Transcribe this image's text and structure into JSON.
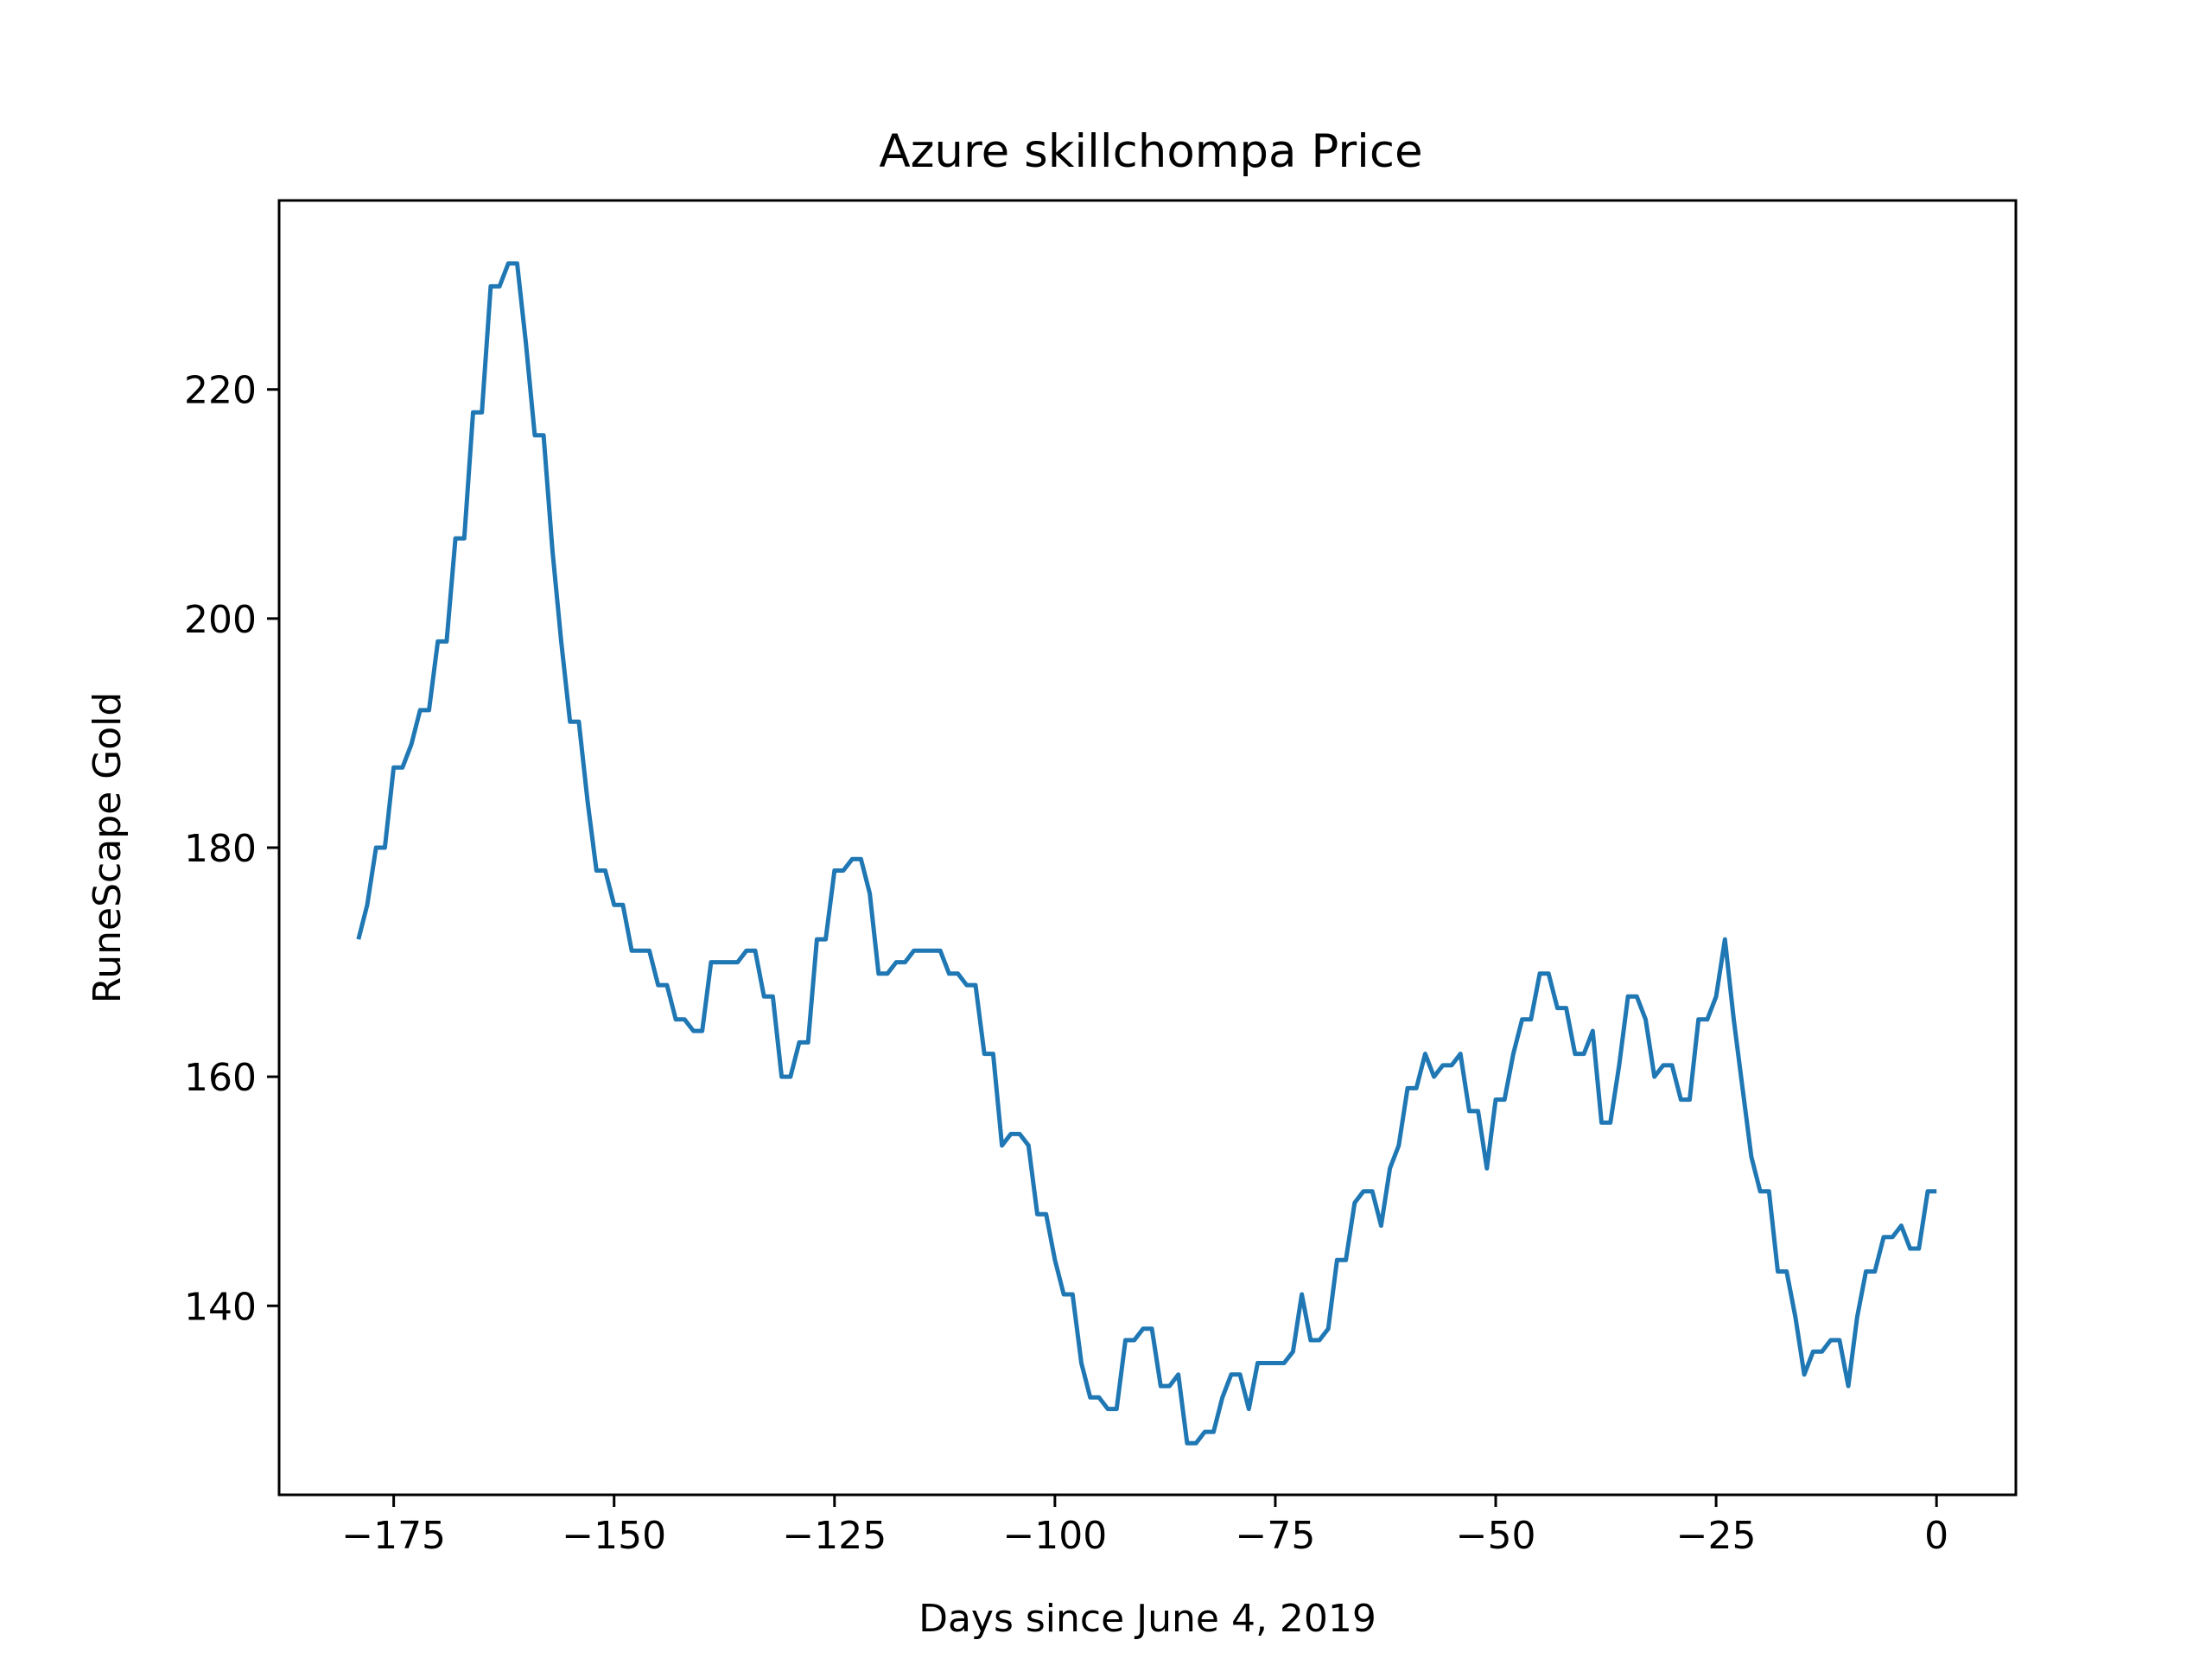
{
  "chart_data": {
    "type": "line",
    "title": "Azure skillchompa Price",
    "xlabel": "Days since June 4, 2019",
    "ylabel": "RuneScape Gold",
    "xlim": [
      -188,
      9
    ],
    "ylim": [
      123.5,
      236.5
    ],
    "xticks": [
      -175,
      -150,
      -125,
      -100,
      -75,
      -50,
      -25,
      0
    ],
    "xtick_labels": [
      "−175",
      "−150",
      "−125",
      "−100",
      "−75",
      "−50",
      "−25",
      "0"
    ],
    "yticks": [
      140,
      160,
      180,
      200,
      220
    ],
    "ytick_labels": [
      "140",
      "160",
      "180",
      "200",
      "220"
    ],
    "grid": false,
    "legend": "none",
    "series": [
      {
        "color": "#1f77b4",
        "points": [
          [
            -179,
            172
          ],
          [
            -178,
            175
          ],
          [
            -177,
            180
          ],
          [
            -176,
            180
          ],
          [
            -175,
            187
          ],
          [
            -174,
            187
          ],
          [
            -173,
            189
          ],
          [
            -172,
            192
          ],
          [
            -171,
            192
          ],
          [
            -170,
            198
          ],
          [
            -169,
            198
          ],
          [
            -168,
            207
          ],
          [
            -167,
            207
          ],
          [
            -166,
            218
          ],
          [
            -165,
            218
          ],
          [
            -164,
            229
          ],
          [
            -163,
            229
          ],
          [
            -162,
            231
          ],
          [
            -161,
            231
          ],
          [
            -160,
            224
          ],
          [
            -159,
            216
          ],
          [
            -158,
            216
          ],
          [
            -157,
            206
          ],
          [
            -156,
            198
          ],
          [
            -155,
            191
          ],
          [
            -154,
            191
          ],
          [
            -153,
            184
          ],
          [
            -152,
            178
          ],
          [
            -151,
            178
          ],
          [
            -150,
            175
          ],
          [
            -149,
            175
          ],
          [
            -148,
            171
          ],
          [
            -147,
            171
          ],
          [
            -146,
            171
          ],
          [
            -145,
            168
          ],
          [
            -144,
            168
          ],
          [
            -143,
            165
          ],
          [
            -142,
            165
          ],
          [
            -141,
            164
          ],
          [
            -140,
            164
          ],
          [
            -139,
            170
          ],
          [
            -138,
            170
          ],
          [
            -137,
            170
          ],
          [
            -136,
            170
          ],
          [
            -135,
            171
          ],
          [
            -134,
            171
          ],
          [
            -133,
            167
          ],
          [
            -132,
            167
          ],
          [
            -131,
            160
          ],
          [
            -130,
            160
          ],
          [
            -129,
            163
          ],
          [
            -128,
            163
          ],
          [
            -127,
            172
          ],
          [
            -126,
            172
          ],
          [
            -125,
            178
          ],
          [
            -124,
            178
          ],
          [
            -123,
            179
          ],
          [
            -122,
            179
          ],
          [
            -121,
            176
          ],
          [
            -120,
            169
          ],
          [
            -119,
            169
          ],
          [
            -118,
            170
          ],
          [
            -117,
            170
          ],
          [
            -116,
            171
          ],
          [
            -115,
            171
          ],
          [
            -114,
            171
          ],
          [
            -113,
            171
          ],
          [
            -112,
            169
          ],
          [
            -111,
            169
          ],
          [
            -110,
            168
          ],
          [
            -109,
            168
          ],
          [
            -108,
            162
          ],
          [
            -107,
            162
          ],
          [
            -106,
            154
          ],
          [
            -105,
            155
          ],
          [
            -104,
            155
          ],
          [
            -103,
            154
          ],
          [
            -102,
            148
          ],
          [
            -101,
            148
          ],
          [
            -100,
            144
          ],
          [
            -99,
            141
          ],
          [
            -98,
            141
          ],
          [
            -97,
            135
          ],
          [
            -96,
            132
          ],
          [
            -95,
            132
          ],
          [
            -94,
            131
          ],
          [
            -93,
            131
          ],
          [
            -92,
            137
          ],
          [
            -91,
            137
          ],
          [
            -90,
            138
          ],
          [
            -89,
            138
          ],
          [
            -88,
            133
          ],
          [
            -87,
            133
          ],
          [
            -86,
            134
          ],
          [
            -85,
            128
          ],
          [
            -84,
            128
          ],
          [
            -83,
            129
          ],
          [
            -82,
            129
          ],
          [
            -81,
            132
          ],
          [
            -80,
            134
          ],
          [
            -79,
            134
          ],
          [
            -78,
            131
          ],
          [
            -77,
            135
          ],
          [
            -76,
            135
          ],
          [
            -75,
            135
          ],
          [
            -74,
            135
          ],
          [
            -73,
            136
          ],
          [
            -72,
            141
          ],
          [
            -71,
            137
          ],
          [
            -70,
            137
          ],
          [
            -69,
            138
          ],
          [
            -68,
            144
          ],
          [
            -67,
            144
          ],
          [
            -66,
            149
          ],
          [
            -65,
            150
          ],
          [
            -64,
            150
          ],
          [
            -63,
            147
          ],
          [
            -62,
            152
          ],
          [
            -61,
            154
          ],
          [
            -60,
            159
          ],
          [
            -59,
            159
          ],
          [
            -58,
            162
          ],
          [
            -57,
            160
          ],
          [
            -56,
            161
          ],
          [
            -55,
            161
          ],
          [
            -54,
            162
          ],
          [
            -53,
            157
          ],
          [
            -52,
            157
          ],
          [
            -51,
            152
          ],
          [
            -50,
            158
          ],
          [
            -49,
            158
          ],
          [
            -48,
            162
          ],
          [
            -47,
            165
          ],
          [
            -46,
            165
          ],
          [
            -45,
            169
          ],
          [
            -44,
            169
          ],
          [
            -43,
            166
          ],
          [
            -42,
            166
          ],
          [
            -41,
            162
          ],
          [
            -40,
            162
          ],
          [
            -39,
            164
          ],
          [
            -38,
            156
          ],
          [
            -37,
            156
          ],
          [
            -36,
            161
          ],
          [
            -35,
            167
          ],
          [
            -34,
            167
          ],
          [
            -33,
            165
          ],
          [
            -32,
            160
          ],
          [
            -31,
            161
          ],
          [
            -30,
            161
          ],
          [
            -29,
            158
          ],
          [
            -28,
            158
          ],
          [
            -27,
            165
          ],
          [
            -26,
            165
          ],
          [
            -25,
            167
          ],
          [
            -24,
            172
          ],
          [
            -23,
            165
          ],
          [
            -22,
            159
          ],
          [
            -21,
            153
          ],
          [
            -20,
            150
          ],
          [
            -19,
            150
          ],
          [
            -18,
            143
          ],
          [
            -17,
            143
          ],
          [
            -16,
            139
          ],
          [
            -15,
            134
          ],
          [
            -14,
            136
          ],
          [
            -13,
            136
          ],
          [
            -12,
            137
          ],
          [
            -11,
            137
          ],
          [
            -10,
            133
          ],
          [
            -9,
            139
          ],
          [
            -8,
            143
          ],
          [
            -7,
            143
          ],
          [
            -6,
            146
          ],
          [
            -5,
            146
          ],
          [
            -4,
            147
          ],
          [
            -3,
            145
          ],
          [
            -2,
            145
          ],
          [
            -1,
            150
          ],
          [
            0,
            150
          ]
        ]
      }
    ]
  }
}
